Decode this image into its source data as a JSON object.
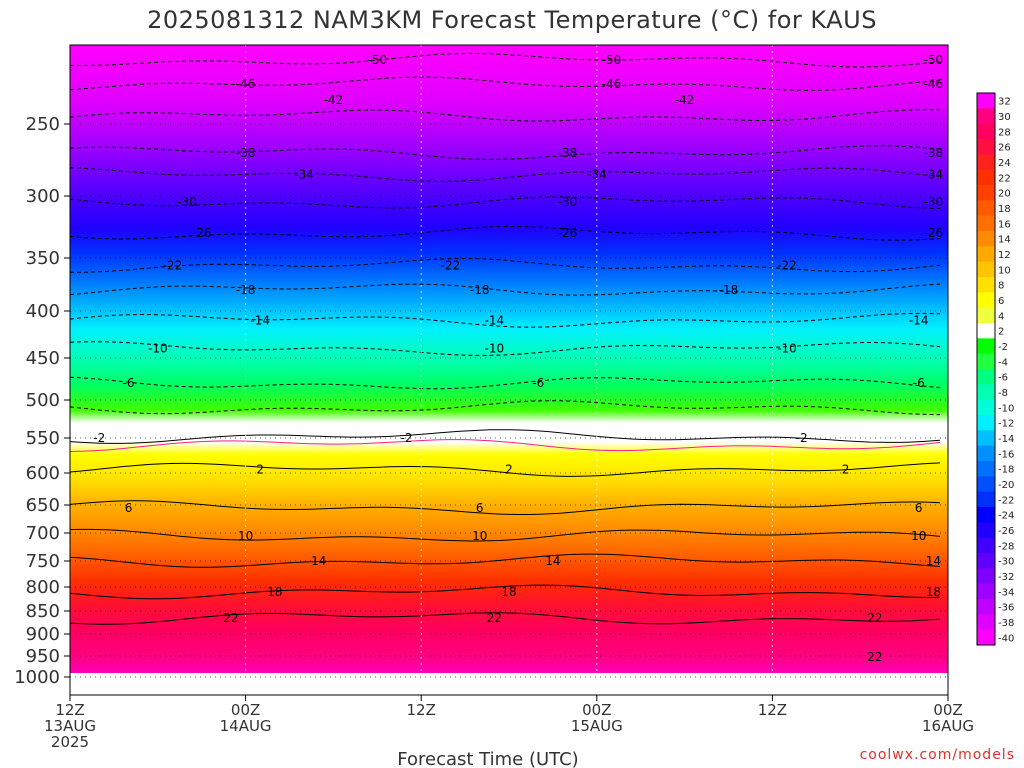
{
  "title": "2025081312 NAM3KM Forecast Temperature (°C) for KAUS",
  "x_axis_title": "Forecast Time (UTC)",
  "credit": "coolwx.com/models",
  "chart_data": {
    "type": "heatmap",
    "title": "2025081312 NAM3KM Forecast Temperature (°C) for KAUS",
    "xlabel": "Forecast Time (UTC)",
    "ylabel": "",
    "y_pressure_ticks": [
      250,
      300,
      350,
      400,
      450,
      500,
      550,
      600,
      650,
      700,
      750,
      800,
      850,
      900,
      950,
      1000
    ],
    "x_ticks": [
      {
        "hour": 0,
        "lines": [
          "12Z",
          "13AUG",
          "2025"
        ]
      },
      {
        "hour": 12,
        "lines": [
          "00Z",
          "14AUG"
        ]
      },
      {
        "hour": 24,
        "lines": [
          "12Z"
        ]
      },
      {
        "hour": 36,
        "lines": [
          "00Z",
          "15AUG"
        ]
      },
      {
        "hour": 48,
        "lines": [
          "12Z"
        ]
      },
      {
        "hour": 60,
        "lines": [
          "00Z",
          "16AUG"
        ]
      }
    ],
    "xlim": [
      0,
      60
    ],
    "grid": true,
    "ground": "brown band below ~990 hPa",
    "colorbar_labels": [
      "32",
      "30",
      "28",
      "26",
      "24",
      "22",
      "20",
      "18",
      "16",
      "14",
      "12",
      "10",
      "8",
      "6",
      "4",
      "2",
      "-2",
      "-4",
      "-6",
      "-8",
      "-10",
      "-12",
      "-14",
      "-16",
      "-18",
      "-20",
      "-22",
      "-24",
      "-26",
      "-28",
      "-30",
      "-32",
      "-34",
      "-36",
      "-38",
      "-40"
    ],
    "colorbar_colors": [
      "#ff00ff",
      "#ff0080",
      "#ff0060",
      "#ff1040",
      "#ff2020",
      "#ff3000",
      "#ff4000",
      "#ff5a00",
      "#ff7000",
      "#ff8c00",
      "#ffa800",
      "#ffc400",
      "#ffe000",
      "#ffff00",
      "#f0ff40",
      "#ffffff",
      "#00ff00",
      "#20ff40",
      "#00ff80",
      "#00ffb0",
      "#00ffd8",
      "#00f0ff",
      "#00c0ff",
      "#0090ff",
      "#0070ff",
      "#0050ff",
      "#0030ff",
      "#0000ff",
      "#2000ff",
      "#4000ff",
      "#6000ff",
      "#8000ff",
      "#a000ff",
      "#c000ff",
      "#e000ff",
      "#ff00ff"
    ],
    "contour_labels": [
      {
        "v": "-50",
        "p": 210,
        "h": [
          21,
          37,
          59
        ]
      },
      {
        "v": "-46",
        "p": 225,
        "h": [
          12,
          37,
          59
        ]
      },
      {
        "v": "-42",
        "p": 235,
        "h": [
          18,
          42
        ]
      },
      {
        "v": "-38",
        "p": 270,
        "h": [
          12,
          34,
          59
        ]
      },
      {
        "v": "-34",
        "p": 285,
        "h": [
          16,
          36,
          59
        ]
      },
      {
        "v": "-30",
        "p": 305,
        "h": [
          8,
          34,
          59
        ]
      },
      {
        "v": "-26",
        "p": 330,
        "h": [
          9,
          34,
          59
        ]
      },
      {
        "v": "-22",
        "p": 357,
        "h": [
          7,
          26,
          49
        ]
      },
      {
        "v": "-18",
        "p": 380,
        "h": [
          12,
          28,
          45
        ]
      },
      {
        "v": "-14",
        "p": 410,
        "h": [
          13,
          29,
          58
        ]
      },
      {
        "v": "-10",
        "p": 440,
        "h": [
          6,
          29,
          49
        ]
      },
      {
        "v": "-6",
        "p": 480,
        "h": [
          4,
          32,
          58
        ]
      },
      {
        "v": "-2",
        "p": 550,
        "h": [
          2,
          23,
          50
        ]
      },
      {
        "v": "2",
        "p": 595,
        "h": [
          13,
          30,
          53
        ]
      },
      {
        "v": "6",
        "p": 655,
        "h": [
          4,
          28,
          58
        ]
      },
      {
        "v": "10",
        "p": 705,
        "h": [
          12,
          28,
          58
        ]
      },
      {
        "v": "14",
        "p": 750,
        "h": [
          17,
          33,
          59
        ]
      },
      {
        "v": "18",
        "p": 810,
        "h": [
          14,
          30,
          59
        ]
      },
      {
        "v": "22",
        "p": 865,
        "h": [
          11,
          29,
          55
        ]
      },
      {
        "v": "22",
        "p": 952,
        "h": [
          55
        ]
      }
    ]
  }
}
